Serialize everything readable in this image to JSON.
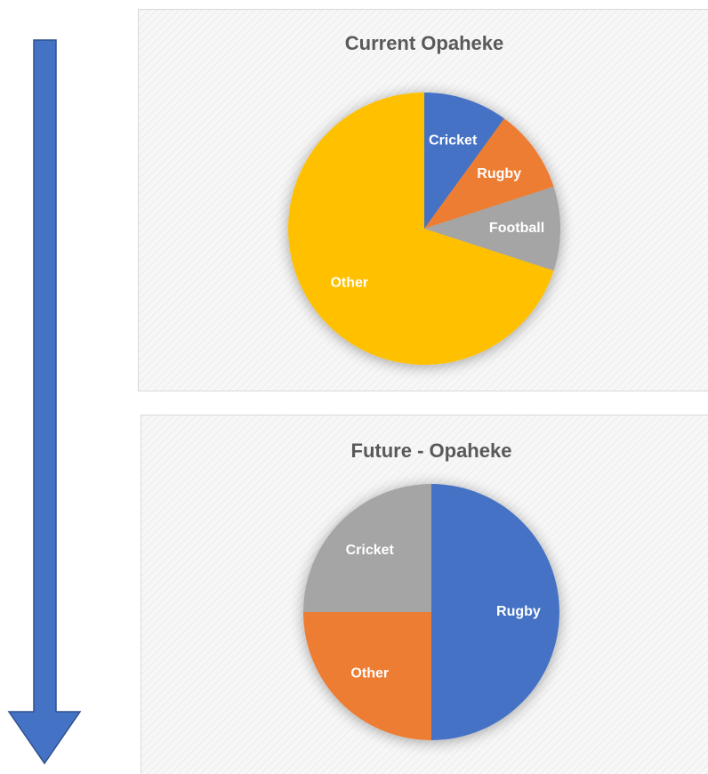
{
  "chart_data": [
    {
      "type": "pie",
      "title": "Current Opaheke",
      "categories": [
        "Cricket",
        "Rugby",
        "Football",
        "Other"
      ],
      "values": [
        10,
        10,
        10,
        70
      ],
      "colors": [
        "#4472c4",
        "#ed7d31",
        "#a5a5a5",
        "#ffc000"
      ]
    },
    {
      "type": "pie",
      "title": "Future - Opaheke",
      "categories": [
        "Rugby",
        "Other",
        "Cricket"
      ],
      "values": [
        50,
        25,
        25
      ],
      "colors": [
        "#4472c4",
        "#ed7d31",
        "#a5a5a5"
      ]
    }
  ]
}
